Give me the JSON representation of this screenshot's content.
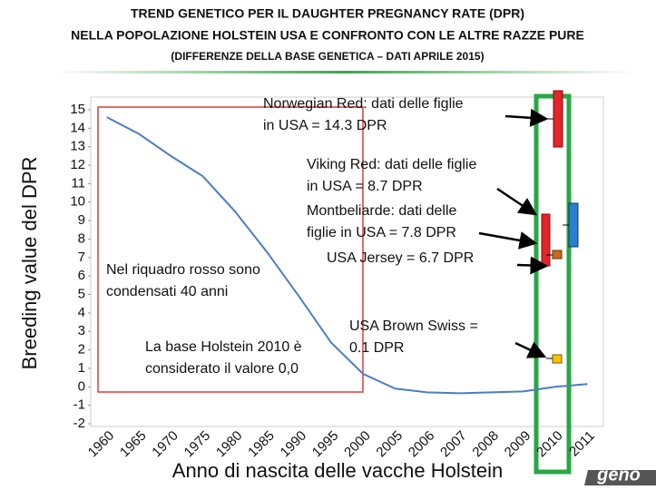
{
  "chart_data": {
    "type": "line",
    "title_lines": [
      "TREND GENETICO PER IL DAUGHTER PREGNANCY RATE (DPR)",
      "NELLA POPOLAZIONE HOLSTEIN USA  E CONFRONTO CON LE ALTRE RAZZE PURE",
      "(DIFFERENZE DELLA BASE GENETICA – DATI APRILE 2015)"
    ],
    "x_label": "Anno di nascita delle vacche  Holstein",
    "y_label": "Breeding value del DPR",
    "categories": [
      "1960",
      "1965",
      "1970",
      "1975",
      "1980",
      "1985",
      "1990",
      "1995",
      "2000",
      "2005",
      "2006",
      "2007",
      "2008",
      "2009",
      "2010",
      "2011"
    ],
    "values": [
      14.6,
      13.7,
      12.5,
      11.4,
      9.5,
      7.3,
      4.9,
      2.4,
      0.7,
      -0.1,
      -0.3,
      -0.35,
      -0.3,
      -0.25,
      0.0,
      0.15
    ],
    "color": "#4a7ec3",
    "ylim": [
      -2,
      15
    ],
    "yticks": [
      -2,
      -1,
      0,
      1,
      2,
      3,
      4,
      5,
      6,
      7,
      8,
      9,
      10,
      11,
      12,
      13,
      14,
      15
    ],
    "grid": false,
    "annotations": [
      {
        "lines": [
          "Norwegian Red: dati delle figlie",
          "in USA = 14.3  DPR"
        ]
      },
      {
        "lines": [
          "Viking Red: dati delle figlie",
          "in USA = 8.7  DPR"
        ]
      },
      {
        "lines": [
          "Montbeliarde: dati delle",
          "figlie in USA = 7.8 DPR"
        ]
      },
      {
        "lines": [
          "USA  Jersey = 6.7 DPR"
        ]
      },
      {
        "lines": [
          "USA Brown Swiss =",
          "0.1 DPR"
        ]
      },
      {
        "lines": [
          "Nel riquadro rosso sono",
          "condensati  40 anni"
        ]
      },
      {
        "lines": [
          "La base Holstein 2010 è",
          "considerato il valore 0,0"
        ]
      }
    ],
    "logo": "geno"
  }
}
